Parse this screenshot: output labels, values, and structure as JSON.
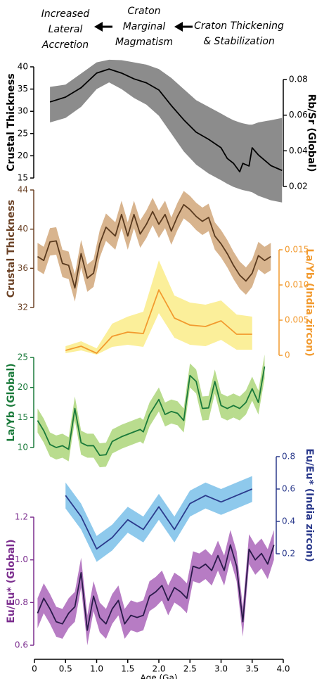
{
  "chart_data": [
    {
      "type": "line",
      "annotations": [
        [
          "Increased",
          "Lateral",
          "Accretion"
        ],
        [
          "Craton",
          "Marginal",
          "Magmatism"
        ],
        [
          "Craton Thickening",
          "& Stabilization"
        ]
      ],
      "ylabel": "Crustal Thickness",
      "axis_color": "#000000",
      "ylim": [
        15,
        40
      ],
      "yticks": [
        15,
        20,
        25,
        30,
        35,
        40
      ],
      "y2label": "Rb/Sr (Global)",
      "y2_color": "#000000",
      "y2lim": [
        0.02,
        0.08
      ],
      "y2ticks": [
        0.02,
        0.04,
        0.06,
        0.08
      ],
      "series": [
        {
          "color": "#000000",
          "x": [
            0.25,
            0.5,
            0.75,
            1.0,
            1.2,
            1.4,
            1.6,
            1.8,
            2.0,
            2.2,
            2.4,
            2.6,
            2.8,
            3.0,
            3.1,
            3.2,
            3.3,
            3.35,
            3.45,
            3.5,
            3.6,
            3.8,
            3.98
          ],
          "values": [
            32.1,
            33.2,
            35.3,
            38.6,
            39.5,
            38.6,
            37.3,
            36.4,
            34.8,
            31.3,
            28.1,
            25.3,
            23.7,
            21.8,
            19.4,
            18.3,
            16.4,
            18.3,
            17.7,
            21.8,
            20.2,
            17.8,
            16.7
          ],
          "band": {
            "color": "#8c8c8c",
            "upper": [
              35.5,
              36,
              38.5,
              41,
              41.6,
              41.5,
              41,
              40.5,
              39.5,
              37.5,
              35,
              32.5,
              31,
              29.5,
              28.7,
              28,
              27.5,
              27.3,
              27,
              27,
              27.5,
              28,
              28.5
            ],
            "lower": [
              27.5,
              28.5,
              31,
              35,
              36.5,
              35,
              33,
              31.5,
              29,
              25,
              21,
              18,
              16,
              14.5,
              13.7,
              13,
              12.5,
              12.3,
              12,
              11.8,
              11,
              10,
              9.5
            ]
          }
        }
      ]
    },
    {
      "type": "line",
      "ylabel": "Crustal Thickness",
      "axis_color": "#6b4226",
      "ylim": [
        32,
        44
      ],
      "yticks": [
        32,
        36,
        40,
        44
      ],
      "y2label": "La/Yb (India zircon)",
      "y2_color": "#f29a2e",
      "y2lim": [
        0,
        0.015
      ],
      "y2ticks": [
        0,
        0.005,
        {
          "value": 0.01,
          "label": "0.010"
        },
        0.015
      ],
      "series": [
        {
          "color": "#5a3a1e",
          "x": [
            0.05,
            0.15,
            0.25,
            0.35,
            0.45,
            0.55,
            0.65,
            0.75,
            0.85,
            0.95,
            1.05,
            1.15,
            1.3,
            1.4,
            1.5,
            1.6,
            1.7,
            1.8,
            1.9,
            2.0,
            2.1,
            2.2,
            2.3,
            2.4,
            2.5,
            2.6,
            2.7,
            2.8,
            2.9,
            3.0,
            3.1,
            3.2,
            3.3,
            3.4,
            3.5,
            3.6,
            3.7,
            3.8
          ],
          "values": [
            37.2,
            36.8,
            38.7,
            38.8,
            36.5,
            36.3,
            34,
            37.5,
            35,
            35.5,
            38.5,
            40.2,
            39.3,
            41.5,
            39.3,
            41.5,
            39.5,
            40.5,
            41.8,
            40.5,
            41.5,
            39.8,
            41.3,
            42.5,
            42,
            41.3,
            40.8,
            41.2,
            39.3,
            38.5,
            37.5,
            36.3,
            35.3,
            34.7,
            35.5,
            37.3,
            36.8,
            37.2
          ],
          "band": {
            "color": "#d8b48e",
            "upper": [
              38.6,
              38.2,
              40.1,
              40.2,
              37.9,
              37.7,
              35.4,
              38.9,
              36.4,
              36.9,
              39.9,
              41.6,
              40.7,
              42.9,
              40.7,
              42.9,
              40.9,
              41.9,
              43.2,
              41.9,
              42.9,
              41.2,
              42.7,
              43.9,
              43.4,
              42.7,
              42.2,
              42.6,
              40.7,
              39.9,
              38.9,
              37.7,
              36.7,
              36.1,
              36.9,
              38.7,
              38.2,
              38.6
            ],
            "lower": [
              35.8,
              35.4,
              37.3,
              37.4,
              35.1,
              34.9,
              32.6,
              36.1,
              33.6,
              34.1,
              37.1,
              38.8,
              37.9,
              40.1,
              37.9,
              40.1,
              38.1,
              39.1,
              40.4,
              39.1,
              40.1,
              38.4,
              39.9,
              41.1,
              40.6,
              39.9,
              39.4,
              39.8,
              37.9,
              37.1,
              36.1,
              34.9,
              33.9,
              33.3,
              34.1,
              35.9,
              35.4,
              35.8
            ]
          }
        },
        {
          "color": "#f29a2e",
          "axis": "y2",
          "x": [
            0.5,
            0.75,
            1.0,
            1.25,
            1.5,
            1.75,
            2.0,
            2.25,
            2.5,
            2.75,
            3.0,
            3.25,
            3.5
          ],
          "values": [
            0.0007,
            0.0013,
            0.0003,
            0.0027,
            0.0033,
            0.0031,
            0.0093,
            0.0053,
            0.0043,
            0.0041,
            0.0049,
            0.003,
            0.003
          ],
          "band": {
            "color": "#fbef9a",
            "upper": [
              0.0013,
              0.002,
              0.001,
              0.0045,
              0.0055,
              0.0062,
              0.0135,
              0.0085,
              0.0075,
              0.0072,
              0.0078,
              0.0058,
              0.0055
            ],
            "lower": [
              0.0003,
              0.0007,
              0.0001,
              0.0012,
              0.0015,
              0.0012,
              0.006,
              0.0025,
              0.0015,
              0.0013,
              0.0022,
              0.0008,
              0.0008
            ]
          }
        }
      ]
    },
    {
      "type": "line",
      "ylabel": "La/Yb (Global)",
      "axis_color": "#1a7a3a",
      "ylim": [
        10,
        25
      ],
      "yticks": [
        10,
        15,
        20,
        25
      ],
      "series": [
        {
          "color": "#1a7a3a",
          "x": [
            0.05,
            0.15,
            0.25,
            0.35,
            0.45,
            0.55,
            0.65,
            0.75,
            0.85,
            0.95,
            1.05,
            1.15,
            1.25,
            1.4,
            1.55,
            1.7,
            1.75,
            1.85,
            2.0,
            2.1,
            2.2,
            2.3,
            2.4,
            2.5,
            2.6,
            2.7,
            2.8,
            2.9,
            3.0,
            3.1,
            3.2,
            3.3,
            3.4,
            3.5,
            3.6,
            3.7
          ],
          "values": [
            14.5,
            12.8,
            10.5,
            10,
            10.3,
            9.7,
            16.5,
            10.8,
            10.3,
            10.3,
            8.7,
            8.8,
            11,
            11.8,
            12.4,
            13,
            12.6,
            15.5,
            18,
            15.5,
            16,
            15.7,
            14.5,
            22,
            21,
            16.5,
            16.6,
            21,
            17,
            16.5,
            17,
            16.5,
            17.5,
            19.8,
            17.5,
            23.5
          ],
          "band": {
            "color": "#b9dc8e",
            "upper": [
              16.5,
              14.8,
              12.5,
              12,
              12.3,
              11.7,
              18.5,
              12.8,
              12.3,
              12.3,
              10.7,
              10.8,
              13,
              13.8,
              14.4,
              15,
              14.6,
              17.5,
              20,
              17.5,
              18,
              17.7,
              16.5,
              24,
              23,
              18.5,
              18.6,
              23,
              19,
              18.5,
              19,
              18.5,
              19.5,
              21.8,
              19.5,
              25.5
            ],
            "lower": [
              12.5,
              10.8,
              8.5,
              8,
              8.3,
              7.7,
              14.5,
              8.8,
              8.3,
              8.3,
              6.7,
              6.8,
              9,
              9.8,
              10.4,
              11,
              10.6,
              13.5,
              16,
              13.5,
              14,
              13.7,
              12.5,
              20,
              19,
              14.5,
              14.6,
              19,
              15,
              14.5,
              15,
              14.5,
              15.5,
              17.8,
              15.5,
              21.5
            ]
          }
        }
      ]
    },
    {
      "type": "line",
      "y2label": "Eu/Eu* (India zircon)",
      "y2_color": "#2b3a8c",
      "y2lim": [
        0.2,
        0.8
      ],
      "y2ticks": [
        0.2,
        0.4,
        0.6,
        0.8
      ],
      "series": [
        {
          "color": "#2b3a8c",
          "axis": "y2",
          "x": [
            0.5,
            0.75,
            1.0,
            1.25,
            1.5,
            1.75,
            2.0,
            2.25,
            2.5,
            2.75,
            3.0,
            3.25,
            3.5
          ],
          "values": [
            0.56,
            0.43,
            0.23,
            0.3,
            0.41,
            0.35,
            0.49,
            0.35,
            0.51,
            0.56,
            0.52,
            0.56,
            0.6
          ],
          "band": {
            "color": "#8ec9ec",
            "upper": [
              0.64,
              0.51,
              0.31,
              0.38,
              0.49,
              0.43,
              0.57,
              0.43,
              0.59,
              0.64,
              0.6,
              0.64,
              0.68
            ],
            "lower": [
              0.48,
              0.35,
              0.15,
              0.22,
              0.33,
              0.27,
              0.41,
              0.27,
              0.43,
              0.48,
              0.44,
              0.48,
              0.52
            ]
          }
        }
      ]
    },
    {
      "type": "line",
      "ylabel": "Eu/Eu* (Global)",
      "axis_color": "#7b2d8e",
      "ylim": [
        0.6,
        1.2
      ],
      "yticks": [
        0.6,
        0.8,
        {
          "value": 1.0,
          "label": "1.0"
        },
        1.2
      ],
      "xlabel": "Age (Ga)",
      "xlim": [
        0,
        4
      ],
      "xticks": [
        0,
        0.5,
        {
          "value": 1,
          "label": "1.0"
        },
        1.5,
        {
          "value": 2,
          "label": "2.0"
        },
        2.5,
        {
          "value": 3,
          "label": "3.0"
        },
        3.5,
        {
          "value": 4,
          "label": "4.0"
        }
      ],
      "series": [
        {
          "color": "#2a1a4a",
          "x": [
            0.05,
            0.15,
            0.25,
            0.35,
            0.45,
            0.55,
            0.65,
            0.75,
            0.85,
            0.95,
            1.05,
            1.15,
            1.25,
            1.35,
            1.45,
            1.55,
            1.65,
            1.75,
            1.85,
            1.95,
            2.05,
            2.15,
            2.25,
            2.35,
            2.45,
            2.55,
            2.65,
            2.75,
            2.85,
            2.95,
            3.05,
            3.15,
            3.25,
            3.35,
            3.45,
            3.55,
            3.65,
            3.75,
            3.85
          ],
          "values": [
            0.75,
            0.82,
            0.77,
            0.71,
            0.7,
            0.75,
            0.78,
            0.94,
            0.67,
            0.83,
            0.73,
            0.7,
            0.77,
            0.81,
            0.7,
            0.74,
            0.73,
            0.74,
            0.83,
            0.85,
            0.88,
            0.81,
            0.87,
            0.85,
            0.82,
            0.97,
            0.96,
            0.98,
            0.95,
            1.02,
            0.95,
            1.07,
            0.97,
            0.71,
            1.05,
            1.0,
            1.03,
            0.98,
            1.07
          ],
          "band": {
            "color": "#b77cc4",
            "upper": [
              0.82,
              0.89,
              0.84,
              0.78,
              0.77,
              0.82,
              0.85,
              1.01,
              0.74,
              0.9,
              0.8,
              0.77,
              0.84,
              0.88,
              0.77,
              0.81,
              0.8,
              0.81,
              0.9,
              0.92,
              0.95,
              0.88,
              0.94,
              0.92,
              0.89,
              1.04,
              1.03,
              1.05,
              1.02,
              1.09,
              1.02,
              1.14,
              1.04,
              0.78,
              1.12,
              1.07,
              1.1,
              1.05,
              1.14
            ],
            "lower": [
              0.68,
              0.75,
              0.7,
              0.64,
              0.63,
              0.68,
              0.71,
              0.87,
              0.6,
              0.76,
              0.66,
              0.63,
              0.7,
              0.74,
              0.63,
              0.67,
              0.66,
              0.67,
              0.76,
              0.78,
              0.81,
              0.74,
              0.8,
              0.78,
              0.75,
              0.9,
              0.89,
              0.91,
              0.88,
              0.95,
              0.88,
              1.0,
              0.9,
              0.64,
              0.98,
              0.93,
              0.96,
              0.91,
              1.0
            ]
          }
        }
      ]
    }
  ]
}
